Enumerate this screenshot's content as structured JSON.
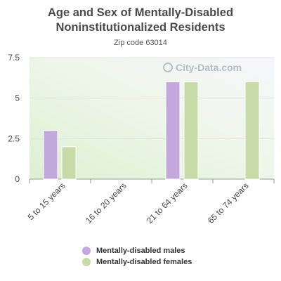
{
  "title_line1": "Age and Sex of Mentally-Disabled",
  "title_line2": "Noninstitutionalized Residents",
  "subtitle": "Zip code 63014",
  "watermark": "City-Data.com",
  "colors": {
    "males": "#c3a8dc",
    "females": "#c7daa7",
    "grid": "#e2e2e2"
  },
  "chart_data": {
    "type": "bar",
    "categories": [
      "5 to 15 years",
      "16 to 20 years",
      "21 to 64 years",
      "65 to 74 years"
    ],
    "series": [
      {
        "name": "Mentally-disabled males",
        "values": [
          3,
          0,
          6,
          0
        ]
      },
      {
        "name": "Mentally-disabled females",
        "values": [
          2,
          0,
          6,
          6
        ]
      }
    ],
    "ylim": [
      0,
      7.5
    ],
    "yticks": [
      "0",
      "2.5",
      "5",
      "7.5"
    ],
    "grid": true,
    "legend": "bottom"
  }
}
